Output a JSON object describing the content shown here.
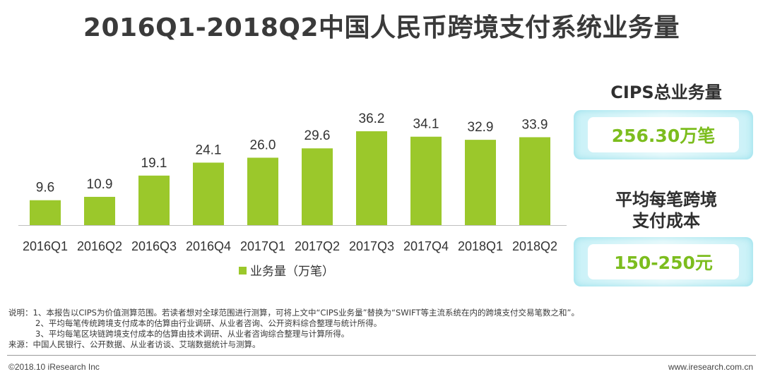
{
  "title": "2016Q1-2018Q2中国人民币跨境支付系统业务量",
  "chart_data": {
    "type": "bar",
    "categories": [
      "2016Q1",
      "2016Q2",
      "2016Q3",
      "2016Q4",
      "2017Q1",
      "2017Q2",
      "2017Q3",
      "2017Q4",
      "2018Q1",
      "2018Q2"
    ],
    "series": [
      {
        "name": "业务量（万笔）",
        "values": [
          9.6,
          10.9,
          19.1,
          24.1,
          26.0,
          29.6,
          36.2,
          34.1,
          32.9,
          33.9
        ]
      }
    ],
    "value_labels": [
      "9.6",
      "10.9",
      "19.1",
      "24.1",
      "26.0",
      "29.6",
      "36.2",
      "34.1",
      "32.9",
      "33.9"
    ],
    "ylim": [
      0,
      36.2
    ],
    "grid": false,
    "legend_position": "bottom",
    "bar_color": "#9bc82b"
  },
  "sidebar": {
    "total_title": "CIPS总业务量",
    "total_value": "256.30万笔",
    "avg_title_line1": "平均每笔跨境",
    "avg_title_line2": "支付成本",
    "avg_value": "150-250元"
  },
  "notes": {
    "line1": "说明：1、本报告以CIPS为价值测算范围。若读者想对全球范围进行测算，可将上文中“CIPS业务量”替换为“SWIFT等主流系统在内的跨境支付交易笔数之和”。",
    "line2": "2、平均每笔传统跨境支付成本的估算由行业调研、从业者咨询、公开资料综合整理与统计所得。",
    "line3": "3、平均每笔区块链跨境支付成本的估算由技术调研、从业者咨询综合整理与计算所得。",
    "line4": "来源：中国人民银行、公开数据、从业者访谈、艾瑞数据统计与测算。"
  },
  "footer": {
    "copyright": "©2018.10 iResearch Inc",
    "website": "www.iresearch.com.cn"
  }
}
